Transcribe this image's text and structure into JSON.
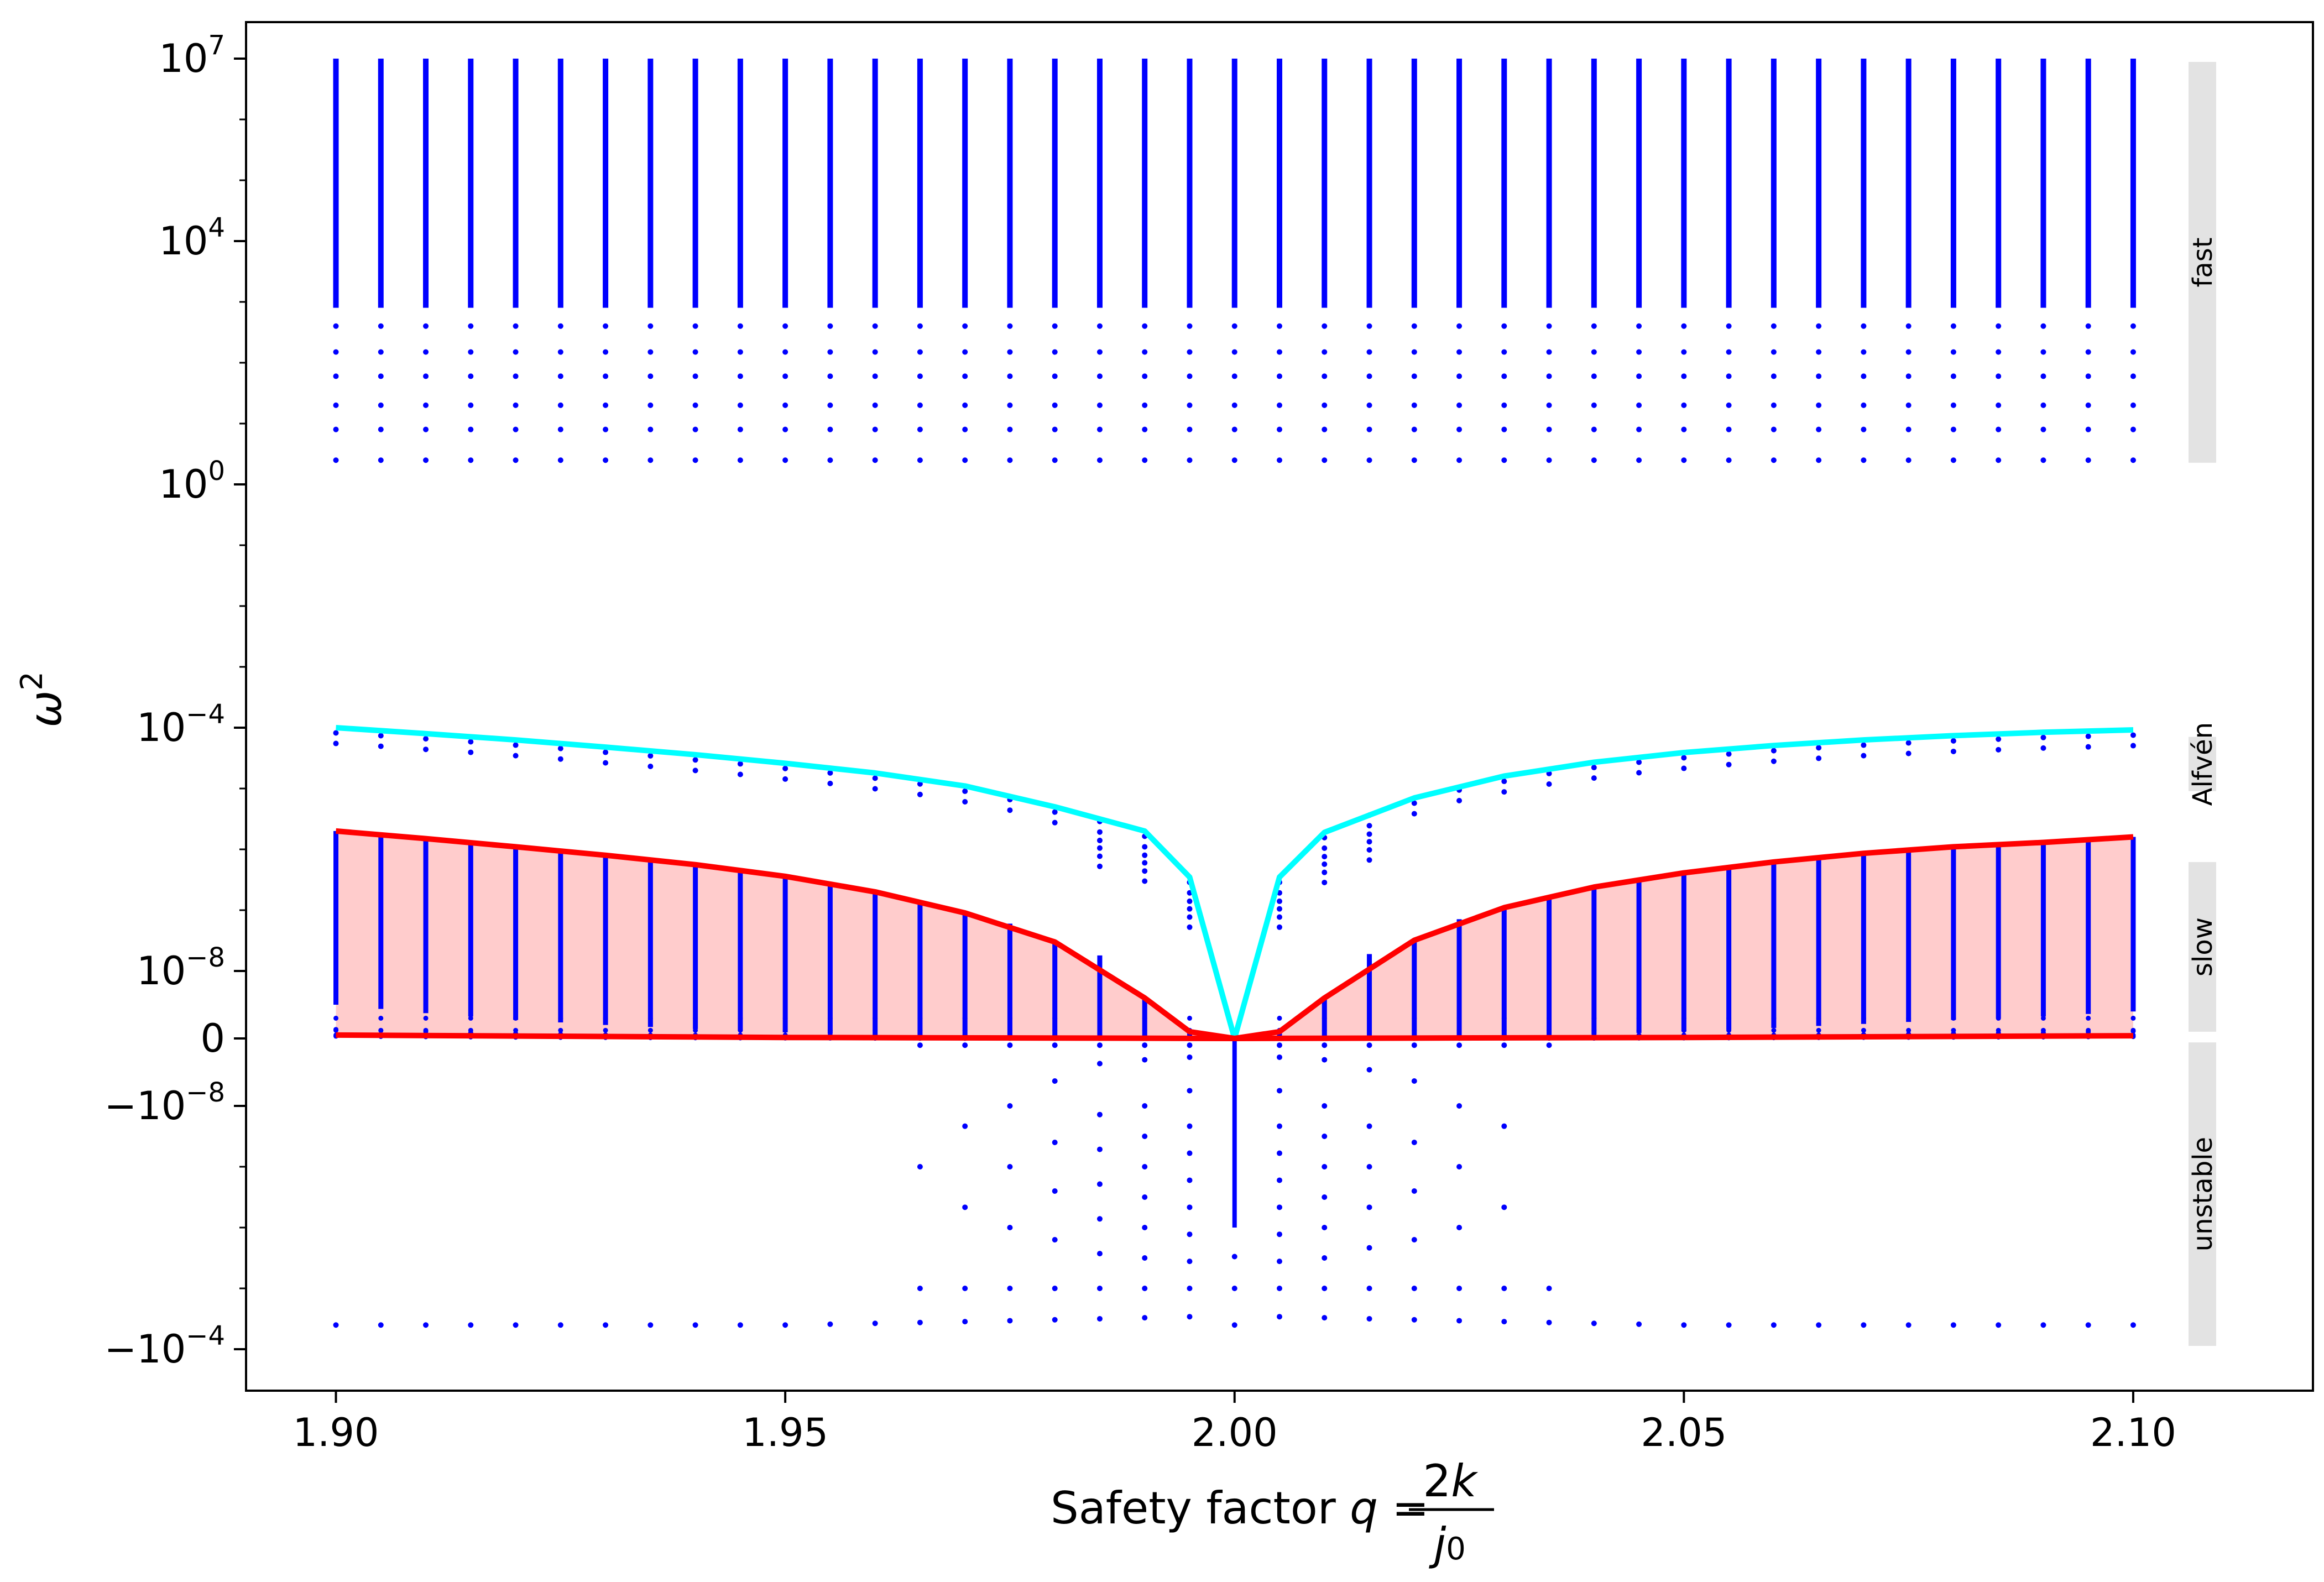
{
  "chart_data": {
    "type": "scatter",
    "title": "",
    "xlabel": "Safety factor q = 2k / j0",
    "ylabel": "ω²",
    "yscale": "symlog",
    "linthresh": 1e-08,
    "xlim": [
      1.89,
      2.12
    ],
    "ylim": [
      -0.0003,
      100000000.0
    ],
    "grid": false,
    "x_ticks": [
      1.9,
      1.95,
      2.0,
      2.05,
      2.1
    ],
    "x_tick_labels": [
      "1.90",
      "1.95",
      "2.00",
      "2.05",
      "2.10"
    ],
    "y_ticks": [
      {
        "value": 10000000.0,
        "base": "10",
        "exp": "7"
      },
      {
        "value": 10000.0,
        "base": "10",
        "exp": "4"
      },
      {
        "value": 1,
        "base": "10",
        "exp": "0"
      },
      {
        "value": 0.0001,
        "base": "10",
        "exp": "−4"
      },
      {
        "value": 1e-08,
        "base": "10",
        "exp": "−8"
      },
      {
        "value": 0,
        "base": "0",
        "exp": ""
      },
      {
        "value": -1e-08,
        "base": "−10",
        "exp": "−8"
      },
      {
        "value": -0.0001,
        "base": "−10",
        "exp": "−4"
      }
    ],
    "q_values": [
      1.9,
      1.905,
      1.91,
      1.915,
      1.92,
      1.925,
      1.93,
      1.935,
      1.94,
      1.945,
      1.95,
      1.955,
      1.96,
      1.965,
      1.97,
      1.975,
      1.98,
      1.985,
      1.99,
      1.995,
      2.0,
      2.005,
      2.01,
      2.015,
      2.02,
      2.025,
      2.03,
      2.035,
      2.04,
      2.045,
      2.05,
      2.055,
      2.06,
      2.065,
      2.07,
      2.075,
      2.08,
      2.085,
      2.09,
      2.095,
      2.1
    ],
    "fast_band": {
      "min": 2.5,
      "max": 10000000.0
    },
    "series": [
      {
        "name": "",
        "color": "#00ffff",
        "x": [
          1.9,
          1.91,
          1.92,
          1.93,
          1.94,
          1.95,
          1.96,
          1.97,
          1.98,
          1.99,
          1.995,
          2.0,
          2.005,
          2.01,
          2.02,
          2.03,
          2.04,
          2.05,
          2.06,
          2.07,
          2.08,
          2.09,
          2.1
        ],
        "y": [
          0.0001,
          8e-05,
          6.3e-05,
          4.8e-05,
          3.6e-05,
          2.6e-05,
          1.8e-05,
          1.1e-05,
          5e-06,
          2e-06,
          3.5e-07,
          0,
          3.5e-07,
          1.9e-06,
          7e-06,
          1.6e-05,
          2.7e-05,
          3.9e-05,
          5.1e-05,
          6.3e-05,
          7.4e-05,
          8.4e-05,
          9.2e-05
        ]
      },
      {
        "name": "",
        "color": "#ff0000",
        "x": [
          1.9,
          1.91,
          1.92,
          1.93,
          1.94,
          1.95,
          1.96,
          1.97,
          1.98,
          1.99,
          1.995,
          2.0,
          2.005,
          2.01,
          2.02,
          2.03,
          2.04,
          2.05,
          2.06,
          2.07,
          2.08,
          2.09,
          2.1
        ],
        "y": [
          2e-06,
          1.5e-06,
          1.1e-06,
          8e-07,
          5.6e-07,
          3.6e-07,
          2e-07,
          9e-08,
          3e-08,
          6e-09,
          1e-09,
          0,
          1e-09,
          6e-09,
          3.2e-08,
          1.1e-07,
          2.4e-07,
          4.1e-07,
          6.2e-07,
          8.6e-07,
          1.1e-06,
          1.3e-06,
          1.6e-06
        ]
      },
      {
        "name": "",
        "color": "#ff0000",
        "x": [
          1.9,
          1.95,
          2.0,
          2.05,
          2.1
        ],
        "y": [
          5e-10,
          1.5e-10,
          0,
          1.5e-10,
          4e-10
        ]
      }
    ],
    "bands": [
      {
        "label": "fast",
        "from": 2.0,
        "to": 10000000.0
      },
      {
        "label": "Alfvén",
        "from": 8e-06,
        "to": 8e-05
      },
      {
        "label": "slow",
        "from": 5e-10,
        "to": 7e-07
      },
      {
        "label": "unstable",
        "from": -1e-10,
        "to": -0.0001
      }
    ]
  }
}
